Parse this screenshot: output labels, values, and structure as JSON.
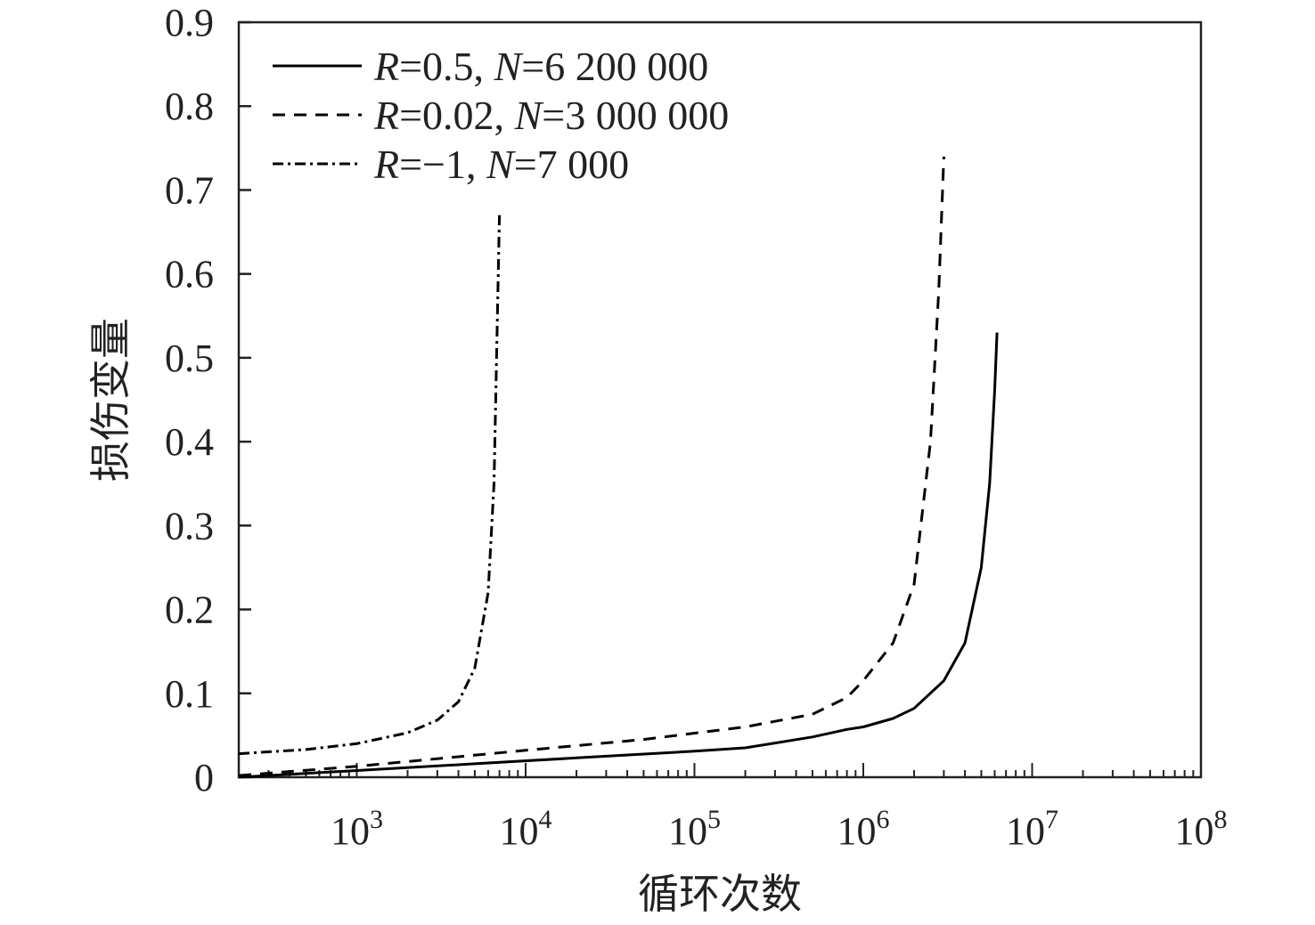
{
  "chart_data": {
    "type": "line",
    "xlabel": "循环次数",
    "ylabel": "损伤变量",
    "x_scale": "log",
    "xlim": [
      200,
      100000000
    ],
    "ylim": [
      0,
      0.9
    ],
    "y_ticks": [
      "0",
      "0.1",
      "0.2",
      "0.3",
      "0.4",
      "0.5",
      "0.6",
      "0.7",
      "0.8",
      "0.9"
    ],
    "x_ticks": [
      {
        "base": "10",
        "exp": "3",
        "value": 1000
      },
      {
        "base": "10",
        "exp": "4",
        "value": 10000
      },
      {
        "base": "10",
        "exp": "5",
        "value": 100000
      },
      {
        "base": "10",
        "exp": "6",
        "value": 1000000
      },
      {
        "base": "10",
        "exp": "7",
        "value": 10000000
      },
      {
        "base": "10",
        "exp": "8",
        "value": 100000000
      }
    ],
    "grid": false,
    "legend_position": "top-left",
    "series": [
      {
        "name": "R=0.5, N=6 200 000",
        "legend": {
          "r_var": "R",
          "r_val": "=0.5, ",
          "n_var": "N",
          "n_val": "=6 200 000"
        },
        "line_style": "solid",
        "color": "#000000",
        "x": [
          200,
          1000,
          5000,
          20000,
          100000,
          200000,
          500000,
          800000,
          1000000,
          1500000,
          2000000,
          3000000,
          4000000,
          5000000,
          5600000,
          6000000,
          6200000
        ],
        "y": [
          0,
          0.008,
          0.016,
          0.023,
          0.031,
          0.035,
          0.048,
          0.057,
          0.06,
          0.07,
          0.082,
          0.115,
          0.16,
          0.25,
          0.35,
          0.46,
          0.53
        ]
      },
      {
        "name": "R=0.02, N=3 000 000",
        "legend": {
          "r_var": "R",
          "r_val": "=0.02, ",
          "n_var": "N",
          "n_val": "=3 000 000"
        },
        "line_style": "dashed",
        "color": "#000000",
        "x": [
          200,
          1000,
          10000,
          50000,
          200000,
          500000,
          800000,
          1000000,
          1500000,
          2000000,
          2500000,
          2800000,
          3000000
        ],
        "y": [
          0.002,
          0.013,
          0.032,
          0.045,
          0.06,
          0.075,
          0.095,
          0.115,
          0.16,
          0.23,
          0.4,
          0.58,
          0.74
        ]
      },
      {
        "name": "R=−1, N=7 000",
        "legend": {
          "r_var": "R",
          "r_val": "=−1, ",
          "n_var": "N",
          "n_val": "=7 000"
        },
        "line_style": "dash-dot",
        "color": "#000000",
        "x": [
          200,
          500,
          1000,
          2000,
          3000,
          4000,
          5000,
          6000,
          6500,
          7000
        ],
        "y": [
          0.028,
          0.033,
          0.04,
          0.053,
          0.068,
          0.09,
          0.13,
          0.22,
          0.35,
          0.67
        ]
      }
    ]
  }
}
